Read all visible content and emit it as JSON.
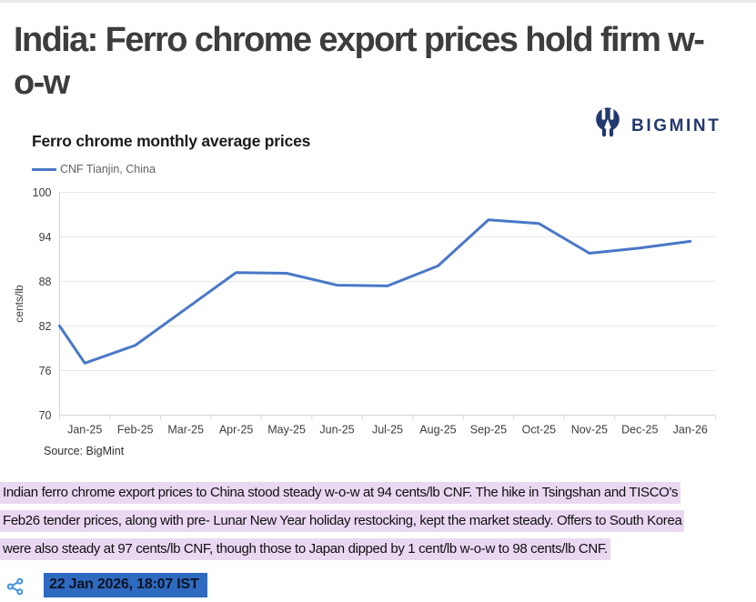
{
  "article": {
    "title_line1": "India: Ferro chrome export prices hold firm w-",
    "title_line2": "o-w",
    "paragraph_lines": [
      "Indian ferro chrome export prices to China stood steady w-o-w at 94 cents/lb CNF. The hike in Tsingshan and TISCO's",
      "Feb26 tender prices, along with pre- Lunar New Year holiday restocking, kept the market steady. Offers to South Korea",
      "were also steady at 97 cents/lb CNF, though those to Japan dipped by 1 cent/lb w-o-w to 98 cents/lb CNF."
    ],
    "paragraph_highlight_color": "#ead8f3",
    "timestamp": "22 Jan 2026, 18:07 IST",
    "timestamp_highlight_color": "#2e6ac0"
  },
  "brand": {
    "logo_text": "BIGMINT",
    "logo_color": "#23386e"
  },
  "chart": {
    "title": "Ferro chrome monthly average prices",
    "legend_label": "CNF Tianjin, China",
    "source": "Source: BigMint",
    "ylabel": "cents/lb"
  },
  "chart_data": {
    "type": "line",
    "title": "Ferro chrome monthly average prices",
    "series_name": "CNF Tianjin, China",
    "categories": [
      "Jan-25",
      "Feb-25",
      "Mar-25",
      "Apr-25",
      "May-25",
      "Jun-25",
      "Jul-25",
      "Aug-25",
      "Sep-25",
      "Oct-25",
      "Nov-25",
      "Dec-25",
      "Jan-26"
    ],
    "values": [
      77.0,
      79.4,
      84.3,
      89.2,
      89.1,
      87.5,
      87.4,
      90.1,
      96.3,
      95.8,
      91.8,
      92.5,
      93.4
    ],
    "edge_start_value": 82.0,
    "ylabel": "cents/lb",
    "xlabel": "",
    "ylim": [
      70,
      100
    ],
    "y_ticks": [
      100,
      94,
      88,
      82,
      76,
      70
    ],
    "grid": true,
    "legend_position": "top-left",
    "line_color": "#4a78c8",
    "gridline_color": "#e8e8e8",
    "axis_line_color": "#d4d4d4",
    "tick_label_color": "#3c3c3c"
  },
  "meta": {
    "share_icon_color": "#3f8fe0"
  }
}
